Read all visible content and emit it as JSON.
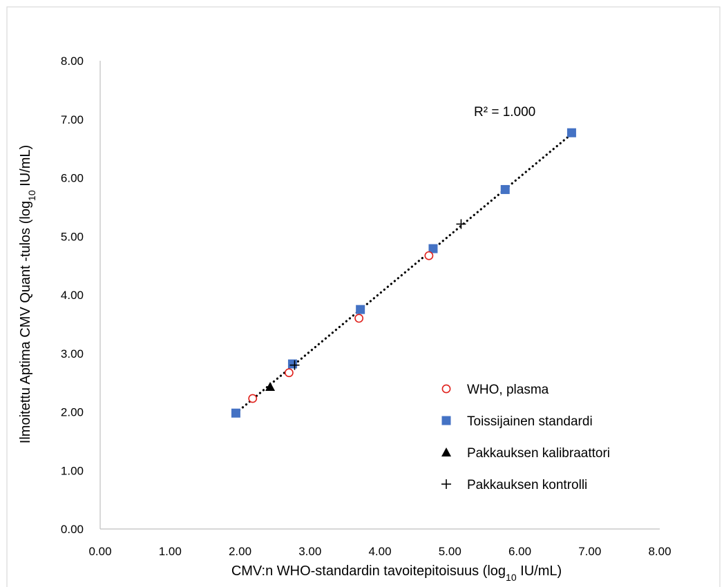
{
  "chart_data": {
    "type": "scatter",
    "xlabel": "CMV:n WHO-standardin tavoitepitoisuus (log10 IU/mL)",
    "xlabel_parts": {
      "pre": "CMV:n WHO-standardin tavoitepitoisuus (log",
      "sub": "10",
      "post": " IU/mL)"
    },
    "ylabel": "Ilmoitettu Aptima CMV Quant -tulos (log10 IU/mL)",
    "ylabel_parts": {
      "pre": "Ilmoitettu Aptima CMV Quant -tulos (log",
      "sub": "10",
      "post": " IU/mL)"
    },
    "xlim": [
      0,
      8
    ],
    "ylim": [
      0,
      8
    ],
    "x_ticks": [
      "0.00",
      "1.00",
      "2.00",
      "3.00",
      "4.00",
      "5.00",
      "6.00",
      "7.00",
      "8.00"
    ],
    "y_ticks": [
      "0.00",
      "1.00",
      "2.00",
      "3.00",
      "4.00",
      "5.00",
      "6.00",
      "7.00",
      "8.00"
    ],
    "grid": false,
    "legend_placement": "bottom-right",
    "annotation": "R² = 1.000",
    "trendline": {
      "style": "dotted",
      "color": "#000000",
      "from": [
        1.94,
        1.98
      ],
      "to": [
        6.74,
        6.75
      ]
    },
    "series": [
      {
        "name": "WHO, plasma",
        "marker": "circle-open",
        "color": "#e0201b",
        "points": [
          [
            2.18,
            2.23
          ],
          [
            2.7,
            2.67
          ],
          [
            3.7,
            3.6
          ],
          [
            4.7,
            4.67
          ]
        ]
      },
      {
        "name": "Toissijainen standardi",
        "marker": "square",
        "color": "#4472c4",
        "points": [
          [
            1.94,
            1.98
          ],
          [
            2.75,
            2.82
          ],
          [
            3.72,
            3.75
          ],
          [
            4.76,
            4.79
          ],
          [
            5.79,
            5.8
          ],
          [
            6.74,
            6.77
          ]
        ]
      },
      {
        "name": "Pakkauksen kalibraattori",
        "marker": "triangle",
        "color": "#000000",
        "points": [
          [
            2.43,
            2.43
          ]
        ]
      },
      {
        "name": "Pakkauksen kontrolli",
        "marker": "plus",
        "color": "#000000",
        "points": [
          [
            2.78,
            2.8
          ],
          [
            5.16,
            5.21
          ]
        ]
      }
    ]
  }
}
